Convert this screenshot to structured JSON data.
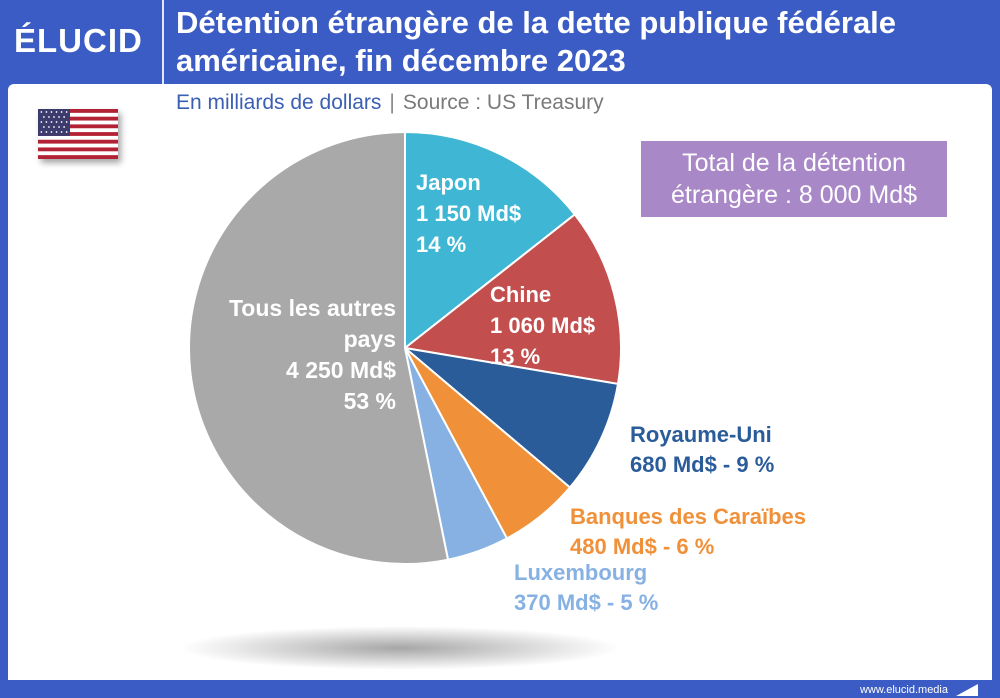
{
  "header": {
    "logo_text": "ÉLUCID",
    "title": "Détention étrangère de la dette publique fédérale américaine, fin décembre 2023"
  },
  "subtitle": {
    "units": "En milliards de dollars",
    "separator": "|",
    "source": "Source : US Treasury"
  },
  "total_box": {
    "line1": "Total de la détention",
    "line2": "étrangère : 8 000 Md$"
  },
  "footer": {
    "url": "www.elucid.media"
  },
  "flag_icon": "us-flag-icon",
  "colors": {
    "header_bg": "#3b5cc4",
    "total_box": "#a988c8"
  },
  "chart_data": {
    "type": "pie",
    "total": 8000,
    "unit": "Md$",
    "slices": [
      {
        "name": "Japon",
        "value": 1150,
        "percent": 14,
        "color": "#3fb7d4",
        "label_lines": [
          "Japon",
          "1 150 Md$",
          "14 %"
        ]
      },
      {
        "name": "Chine",
        "value": 1060,
        "percent": 13,
        "color": "#c24e4e",
        "label_lines": [
          "Chine",
          "1 060 Md$",
          "13 %"
        ]
      },
      {
        "name": "Royaume-Uni",
        "value": 680,
        "percent": 9,
        "color": "#2a5c9a",
        "label_lines": [
          "Royaume-Uni",
          "680 Md$ - 9 %"
        ]
      },
      {
        "name": "Banques des Caraïbes",
        "value": 480,
        "percent": 6,
        "color": "#f0913a",
        "label_lines": [
          "Banques des Caraïbes",
          "480 Md$ - 6 %"
        ]
      },
      {
        "name": "Luxembourg",
        "value": 370,
        "percent": 5,
        "color": "#86b1e2",
        "label_lines": [
          "Luxembourg",
          "370 Md$ - 5 %"
        ]
      },
      {
        "name": "Tous les autres pays",
        "value": 4250,
        "percent": 53,
        "color": "#a9a9a9",
        "label_lines": [
          "Tous les autres",
          "pays",
          "4 250 Md$",
          "53 %"
        ]
      }
    ]
  }
}
